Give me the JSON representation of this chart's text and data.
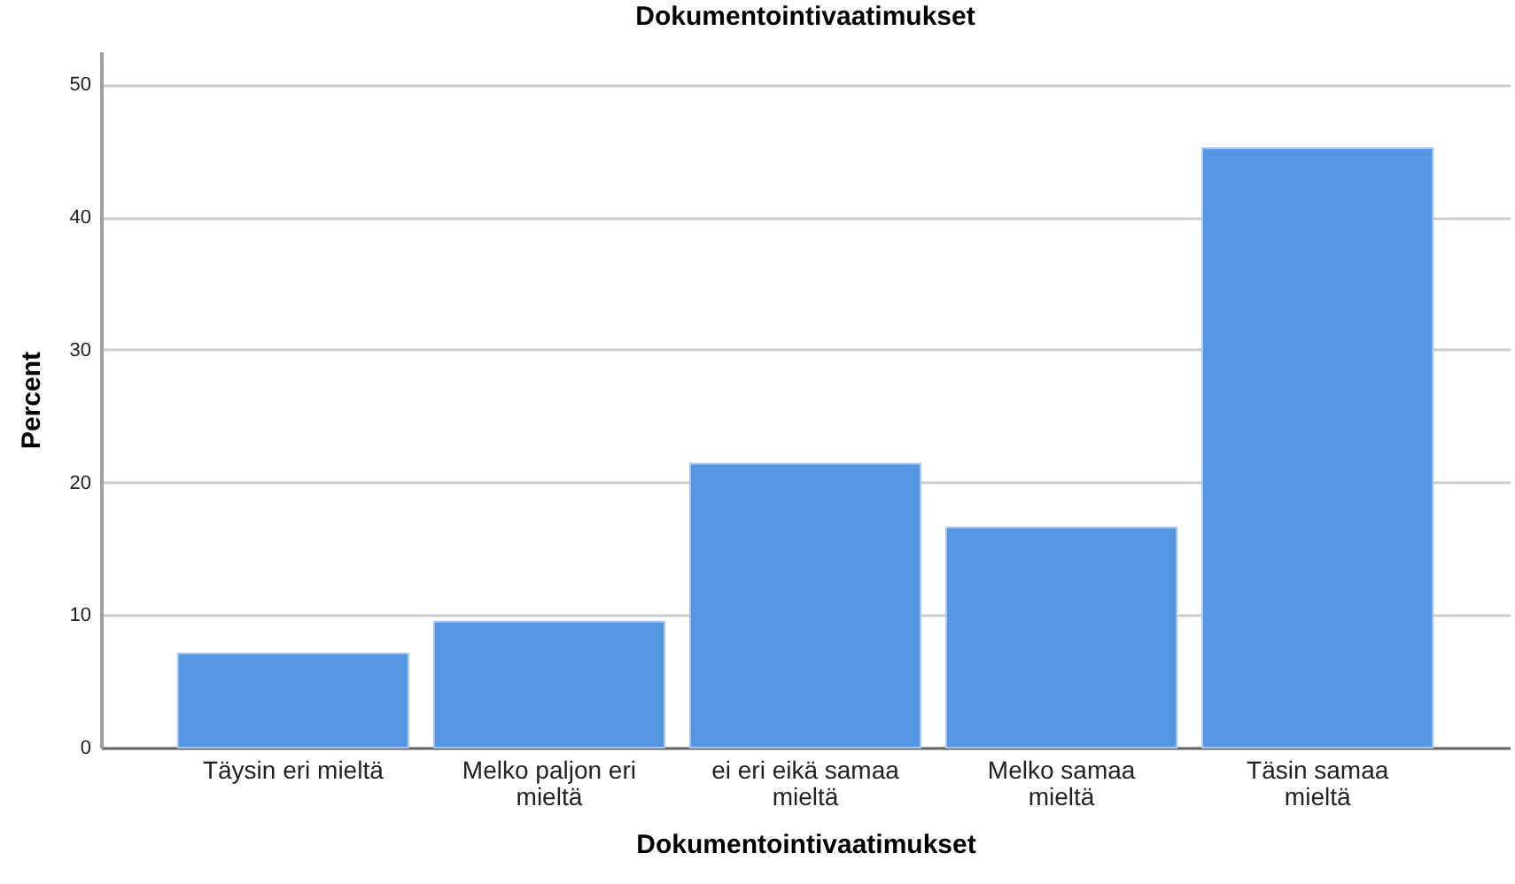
{
  "chart_data": {
    "type": "bar",
    "title": "Dokumentointivaatimukset",
    "xlabel": "Dokumentointivaatimukset",
    "ylabel": "Percent",
    "categories": [
      "Täysin eri mieltä",
      "Melko paljon eri mieltä",
      "ei eri eikä samaa mieltä",
      "Melko samaa mieltä",
      "Täsin samaa mieltä"
    ],
    "values": [
      7.1,
      9.5,
      21.4,
      16.6,
      45.2
    ],
    "color": "#5596e3",
    "ylim": [
      0,
      52.5
    ],
    "yticks": [
      0,
      10,
      20,
      30,
      40,
      50
    ],
    "grid": "y"
  }
}
